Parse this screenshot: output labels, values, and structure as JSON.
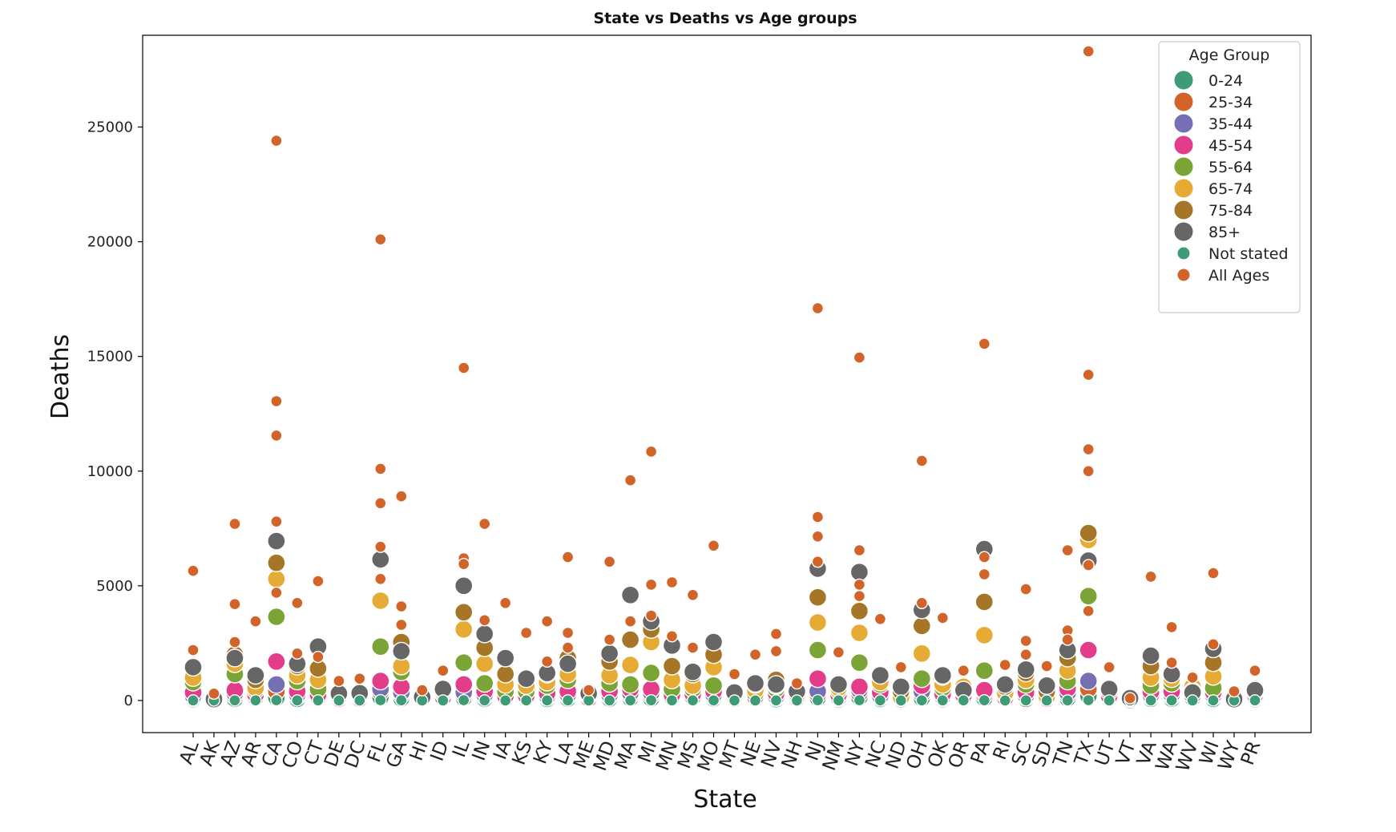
{
  "chart_data": {
    "type": "scatter",
    "title": "State vs Deaths vs Age groups",
    "xlabel": "State",
    "ylabel": "Deaths",
    "ylim": [
      -1400,
      29000
    ],
    "yticks": [
      0,
      5000,
      10000,
      15000,
      20000,
      25000
    ],
    "grid": false,
    "legend_position": "top-right",
    "legend_title": "Age Group",
    "categories": [
      "AL",
      "AK",
      "AZ",
      "AR",
      "CA",
      "CO",
      "CT",
      "DE",
      "DC",
      "FL",
      "GA",
      "HI",
      "ID",
      "IL",
      "IN",
      "IA",
      "KS",
      "KY",
      "LA",
      "ME",
      "MD",
      "MA",
      "MI",
      "MN",
      "MS",
      "MO",
      "MT",
      "NE",
      "NV",
      "NH",
      "NJ",
      "NM",
      "NY",
      "NC",
      "ND",
      "OH",
      "OK",
      "OR",
      "PA",
      "RI",
      "SC",
      "SD",
      "TN",
      "TX",
      "UT",
      "VT",
      "VA",
      "WA",
      "WV",
      "WI",
      "WY",
      "PR"
    ],
    "series": [
      {
        "name": "0-24",
        "color": "#3f9b76",
        "size": "large",
        "values": [
          60,
          8,
          80,
          60,
          130,
          70,
          60,
          20,
          25,
          150,
          100,
          20,
          30,
          120,
          80,
          40,
          50,
          70,
          90,
          20,
          90,
          110,
          100,
          60,
          70,
          90,
          20,
          40,
          60,
          20,
          120,
          40,
          140,
          70,
          20,
          110,
          60,
          50,
          110,
          30,
          70,
          20,
          100,
          200,
          40,
          20,
          80,
          80,
          40,
          70,
          15,
          60
        ]
      },
      {
        "name": "25-34",
        "color": "#d2642a",
        "size": "large",
        "values": [
          120,
          15,
          200,
          100,
          400,
          180,
          110,
          40,
          50,
          380,
          250,
          40,
          70,
          250,
          180,
          80,
          90,
          150,
          190,
          40,
          190,
          230,
          230,
          110,
          120,
          170,
          40,
          70,
          130,
          60,
          260,
          100,
          300,
          140,
          30,
          280,
          120,
          100,
          250,
          60,
          150,
          30,
          220,
          500,
          90,
          80,
          160,
          180,
          90,
          160,
          20,
          120
        ]
      },
      {
        "name": "35-44",
        "color": "#7570b3",
        "size": "large",
        "values": [
          200,
          20,
          300,
          150,
          700,
          250,
          160,
          50,
          60,
          500,
          350,
          50,
          100,
          350,
          250,
          120,
          130,
          200,
          250,
          60,
          250,
          320,
          330,
          160,
          170,
          250,
          60,
          110,
          180,
          80,
          400,
          150,
          450,
          200,
          40,
          400,
          180,
          150,
          380,
          80,
          220,
          50,
          330,
          850,
          130,
          90,
          240,
          260,
          130,
          230,
          30,
          170
        ]
      },
      {
        "name": "45-54",
        "color": "#e23c8a",
        "size": "large",
        "values": [
          350,
          30,
          450,
          250,
          1700,
          400,
          250,
          80,
          90,
          850,
          600,
          70,
          150,
          700,
          400,
          200,
          200,
          320,
          400,
          100,
          400,
          500,
          500,
          250,
          280,
          400,
          90,
          170,
          300,
          120,
          950,
          250,
          600,
          350,
          60,
          650,
          280,
          230,
          450,
          130,
          350,
          80,
          520,
          2200,
          200,
          130,
          380,
          400,
          230,
          350,
          45,
          250
        ]
      },
      {
        "name": "55-64",
        "color": "#7aa436",
        "size": "large",
        "values": [
          800,
          50,
          1150,
          450,
          3650,
          850,
          500,
          150,
          170,
          2350,
          1250,
          120,
          300,
          1650,
          750,
          400,
          400,
          650,
          900,
          200,
          750,
          700,
          1200,
          500,
          500,
          650,
          150,
          300,
          500,
          200,
          2200,
          450,
          1650,
          700,
          120,
          950,
          550,
          450,
          1300,
          260,
          700,
          150,
          850,
          4550,
          400,
          130,
          650,
          750,
          500,
          550,
          80,
          380
        ]
      },
      {
        "name": "65-74",
        "color": "#e6ab35",
        "size": "large",
        "values": [
          1000,
          50,
          1600,
          550,
          5300,
          1100,
          900,
          200,
          230,
          4350,
          1500,
          140,
          350,
          3100,
          1600,
          700,
          650,
          800,
          1150,
          250,
          1100,
          1550,
          2550,
          900,
          650,
          1450,
          200,
          450,
          650,
          280,
          3400,
          550,
          2950,
          800,
          150,
          2050,
          700,
          600,
          2850,
          330,
          900,
          180,
          1300,
          7000,
          450,
          100,
          1000,
          950,
          600,
          1050,
          90,
          450
        ]
      },
      {
        "name": "75-84",
        "color": "#a67628",
        "size": "large",
        "values": [
          1500,
          70,
          2000,
          900,
          6000,
          1500,
          1400,
          300,
          320,
          6100,
          2550,
          200,
          450,
          3850,
          2300,
          1150,
          1000,
          1150,
          1850,
          350,
          1700,
          2650,
          3100,
          1500,
          1150,
          2000,
          300,
          700,
          900,
          400,
          4500,
          700,
          3900,
          1150,
          400,
          3250,
          1050,
          400,
          4300,
          600,
          1200,
          400,
          1850,
          7300,
          400,
          100,
          1500,
          1200,
          400,
          1650,
          100,
          500
        ]
      },
      {
        "name": "85+",
        "color": "#666666",
        "size": "large",
        "values": [
          1450,
          60,
          1850,
          1100,
          6950,
          1600,
          2350,
          300,
          320,
          6150,
          2150,
          150,
          500,
          5000,
          2900,
          1850,
          950,
          1200,
          1600,
          300,
          2050,
          4600,
          3450,
          2400,
          1250,
          2550,
          350,
          750,
          700,
          400,
          5750,
          700,
          5600,
          1100,
          600,
          3950,
          1100,
          450,
          6600,
          700,
          1350,
          650,
          2200,
          6100,
          500,
          100,
          1950,
          1150,
          350,
          2250,
          60,
          450
        ]
      },
      {
        "name": "Not stated",
        "color": "#3f9b76",
        "size": "small",
        "values": [
          5,
          0,
          5,
          3,
          10,
          5,
          3,
          0,
          0,
          10,
          8,
          0,
          2,
          10,
          5,
          2,
          3,
          4,
          6,
          1,
          6,
          5,
          8,
          3,
          3,
          5,
          1,
          2,
          4,
          1,
          12,
          3,
          12,
          4,
          1,
          6,
          4,
          3,
          8,
          1,
          4,
          1,
          6,
          15,
          2,
          1,
          4,
          5,
          2,
          4,
          0,
          3
        ]
      },
      {
        "name": "All Ages",
        "color": "#d2642a",
        "size": "small",
        "values": [
          5650,
          300,
          7700,
          3450,
          24400,
          4250,
          5200,
          850,
          950,
          20100,
          8900,
          450,
          1300,
          14500,
          7700,
          4250,
          2950,
          3450,
          6250,
          450,
          6050,
          9600,
          10850,
          5150,
          4600,
          6750,
          1150,
          2000,
          2900,
          750,
          17100,
          2100,
          14950,
          3550,
          1450,
          10450,
          3600,
          1300,
          15550,
          1550,
          4850,
          1500,
          6550,
          28300,
          1450,
          100,
          5400,
          3200,
          1000,
          5550,
          400,
          1300
        ]
      }
    ],
    "extra_points": {
      "All Ages": [
        {
          "x": "AL",
          "values": [
            2200
          ]
        },
        {
          "x": "AZ",
          "values": [
            4200,
            2550
          ]
        },
        {
          "x": "CA",
          "values": [
            13050,
            11550,
            7800,
            4700
          ]
        },
        {
          "x": "CO",
          "values": [
            2050
          ]
        },
        {
          "x": "CT",
          "values": [
            1900
          ]
        },
        {
          "x": "FL",
          "values": [
            10100,
            8600,
            6700,
            5300
          ]
        },
        {
          "x": "GA",
          "values": [
            4100,
            3300
          ]
        },
        {
          "x": "IL",
          "values": [
            6200,
            5950
          ]
        },
        {
          "x": "IN",
          "values": [
            3500
          ]
        },
        {
          "x": "KY",
          "values": [
            1700
          ]
        },
        {
          "x": "LA",
          "values": [
            2950,
            2300
          ]
        },
        {
          "x": "MD",
          "values": [
            2650
          ]
        },
        {
          "x": "MA",
          "values": [
            3450
          ]
        },
        {
          "x": "MI",
          "values": [
            5050,
            3700
          ]
        },
        {
          "x": "MN",
          "values": [
            2800
          ]
        },
        {
          "x": "MS",
          "values": [
            2300
          ]
        },
        {
          "x": "NV",
          "values": [
            2150
          ]
        },
        {
          "x": "NJ",
          "values": [
            8000,
            7150,
            6050
          ]
        },
        {
          "x": "NY",
          "values": [
            6550,
            5050,
            4550
          ]
        },
        {
          "x": "OH",
          "values": [
            4250
          ]
        },
        {
          "x": "PA",
          "values": [
            6250,
            5500
          ]
        },
        {
          "x": "SC",
          "values": [
            2600,
            2000
          ]
        },
        {
          "x": "TN",
          "values": [
            3050,
            2650
          ]
        },
        {
          "x": "TX",
          "values": [
            14200,
            10950,
            10000,
            5900,
            3900
          ]
        },
        {
          "x": "WA",
          "values": [
            1650
          ]
        },
        {
          "x": "WI",
          "values": [
            2450
          ]
        }
      ]
    }
  }
}
